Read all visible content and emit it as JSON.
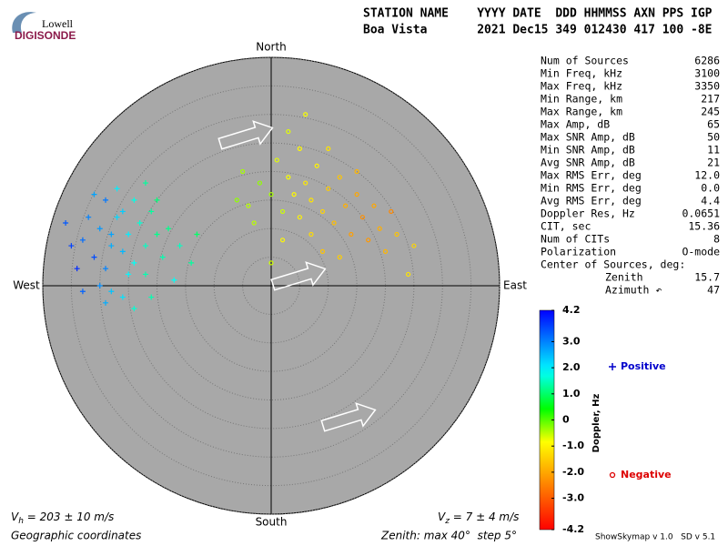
{
  "header": {
    "logo_top": "Lowell",
    "logo_bottom": "DIGISONDE",
    "columns": "STATION NAME    YYYY DATE  DDD HHMMSS AXN PPS IGP",
    "values": "Boa Vista       2021 Dec15 349 012430 417 100 -8E"
  },
  "chart_data": {
    "type": "skymap",
    "directions": {
      "north": "North",
      "south": "South",
      "west": "West",
      "east": "East"
    },
    "rlim": [
      0,
      40
    ],
    "rings": [
      5,
      10,
      15,
      20,
      25,
      30,
      35,
      40
    ],
    "series": [
      {
        "name": "Positive",
        "marker": "+",
        "color": "#0000cc",
        "x": [
          -33,
          -31,
          -30,
          -29,
          -28,
          -27,
          -26,
          -25,
          -24,
          -23,
          -22,
          -21,
          -20,
          -19,
          -34,
          -35,
          -32,
          -30,
          -28,
          -26,
          -25,
          -24,
          -22,
          -20,
          -18,
          -16,
          -14,
          -31,
          -29,
          -27,
          -36,
          -33,
          -29,
          -24,
          -21,
          -17,
          -13,
          -22,
          -26,
          -28
        ],
        "y": [
          8,
          5,
          10,
          3,
          7,
          12,
          6,
          9,
          4,
          11,
          7,
          13,
          9,
          5,
          3,
          7,
          12,
          0,
          -1,
          -2,
          2,
          15,
          2,
          15,
          10,
          7,
          4,
          16,
          15,
          17,
          11,
          -1,
          -3,
          -4,
          -2,
          1,
          9,
          18,
          13,
          9
        ],
        "doppler": [
          3.2,
          3.5,
          2.8,
          3.0,
          2.6,
          2.2,
          2.5,
          2.0,
          1.8,
          1.6,
          1.5,
          1.3,
          1.2,
          1.4,
          3.8,
          3.6,
          3.0,
          2.9,
          2.4,
          2.1,
          1.9,
          1.7,
          1.4,
          1.1,
          1.2,
          1.5,
          1.3,
          2.7,
          3.1,
          2.0,
          3.4,
          3.3,
          2.6,
          1.6,
          1.4,
          1.8,
          1.0,
          1.3,
          2.3,
          2.7
        ]
      },
      {
        "name": "Negative",
        "marker": "o",
        "color": "#dd0000",
        "x": [
          0,
          -2,
          -4,
          2,
          3,
          4,
          5,
          6,
          7,
          8,
          9,
          10,
          11,
          12,
          13,
          14,
          15,
          16,
          17,
          18,
          19,
          20,
          22,
          -5,
          1,
          5,
          10,
          -3,
          7,
          12,
          25,
          -6,
          6,
          3,
          15,
          21,
          9,
          2,
          24,
          0
        ],
        "y": [
          16,
          18,
          14,
          13,
          19,
          16,
          12,
          18,
          15,
          21,
          13,
          17,
          11,
          19,
          14,
          9,
          16,
          12,
          8,
          14,
          10,
          6,
          9,
          20,
          22,
          24,
          24,
          11,
          9,
          5,
          7,
          15,
          30,
          27,
          20,
          13,
          6,
          8,
          2,
          4
        ],
        "doppler": [
          -0.4,
          -0.3,
          -0.5,
          -0.6,
          -0.8,
          -0.9,
          -1.0,
          -1.1,
          -1.2,
          -1.0,
          -1.4,
          -1.5,
          -1.7,
          -1.6,
          -1.9,
          -2.1,
          -2.0,
          -2.3,
          -2.2,
          -2.0,
          -1.9,
          -1.8,
          -1.6,
          -0.4,
          -0.7,
          -0.9,
          -1.2,
          -0.5,
          -1.3,
          -1.5,
          -1.4,
          -0.3,
          -0.8,
          -0.7,
          -1.8,
          -2.4,
          -1.6,
          -0.9,
          -1.2,
          -0.6
        ]
      }
    ],
    "colorbar": {
      "label": "Doppler, Hz",
      "lim": [
        -4.2,
        4.2
      ],
      "ticks": [
        4.2,
        {
          "value": 3,
          "label": "3.0"
        },
        {
          "value": 2,
          "label": "2.0"
        },
        {
          "value": 1,
          "label": "1.0"
        },
        0,
        {
          "value": -1,
          "label": "-1.0"
        },
        {
          "value": -2,
          "label": "-2.0"
        },
        {
          "value": -3,
          "label": "-3.0"
        },
        -4.2
      ]
    },
    "stats": [
      {
        "label": "Num of Sources",
        "value": "6286"
      },
      {
        "label": "Min Freq, kHz",
        "value": "3100"
      },
      {
        "label": "Max Freq, kHz",
        "value": "3350"
      },
      {
        "label": "Min Range, km",
        "value": "217"
      },
      {
        "label": "Max Range, km",
        "value": "245"
      },
      {
        "label": "Max Amp, dB",
        "value": "65"
      },
      {
        "label": "Max SNR Amp, dB",
        "value": "50"
      },
      {
        "label": "Min SNR Amp, dB",
        "value": "11"
      },
      {
        "label": "Avg SNR Amp, dB",
        "value": "21"
      },
      {
        "label": "Max RMS Err, deg",
        "value": "12.0"
      },
      {
        "label": "Min RMS Err, deg",
        "value": "0.0"
      },
      {
        "label": "Avg RMS Err, deg",
        "value": "4.4"
      },
      {
        "label": "Doppler Res, Hz",
        "value": "0.0651"
      },
      {
        "label": "CIT, sec",
        "value": "15.36"
      },
      {
        "label": "Num of CITs",
        "value": "8"
      },
      {
        "label": "Polarization",
        "value": "O-mode"
      }
    ],
    "center": {
      "title": "Center of Sources, deg:",
      "rows": [
        {
          "label": "Zenith",
          "value": "15.7"
        },
        {
          "label": "Azimuth ↶",
          "value": "47"
        }
      ]
    },
    "vh": {
      "symbol": "V",
      "sub": "h",
      "text": " = 203 ± 10 m/s"
    },
    "vz": {
      "symbol": "V",
      "sub": "z",
      "text": " = 7 ± 4 m/s"
    },
    "footer_left": "Geographic coordinates",
    "footer_mid": "Zenith: max 40°  step 5°",
    "footer_right": "ShowSkymap v 1.0   SD v 5.1"
  }
}
